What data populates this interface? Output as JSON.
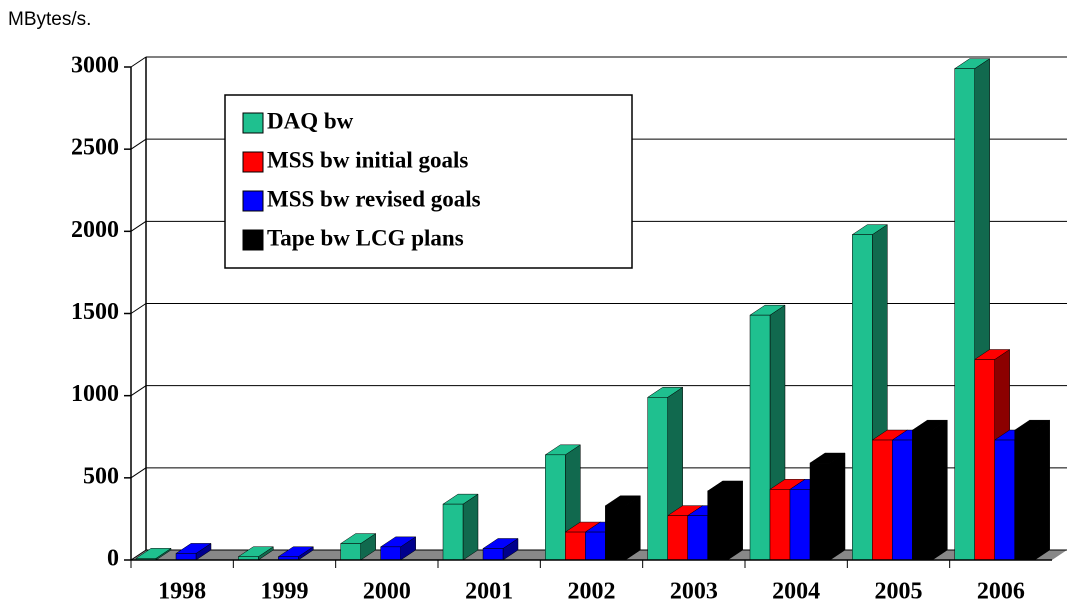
{
  "chart_data": {
    "type": "bar3d",
    "ylabel": "MBytes/s.",
    "categories": [
      "1998",
      "1999",
      "2000",
      "2001",
      "2002",
      "2003",
      "2004",
      "2005",
      "2006"
    ],
    "series": [
      {
        "name": "DAQ bw",
        "color": "#1fc08f",
        "values": [
          10,
          20,
          100,
          340,
          640,
          990,
          1490,
          1980,
          2990
        ]
      },
      {
        "name": "MSS bw initial goals",
        "color": "#ff0000",
        "values": [
          null,
          null,
          null,
          null,
          170,
          270,
          430,
          730,
          1220
        ]
      },
      {
        "name": "MSS bw revised goals",
        "color": "#0000ff",
        "values": [
          40,
          20,
          80,
          70,
          170,
          270,
          430,
          730,
          730
        ]
      },
      {
        "name": "Tape bw LCG plans",
        "color": "#000000",
        "values": [
          null,
          null,
          null,
          null,
          330,
          420,
          590,
          790,
          790
        ]
      }
    ],
    "ylim": [
      0,
      3000
    ],
    "yticks": [
      0,
      500,
      1000,
      1500,
      2000,
      2500,
      3000
    ],
    "grid": true,
    "legend": "upper left"
  }
}
